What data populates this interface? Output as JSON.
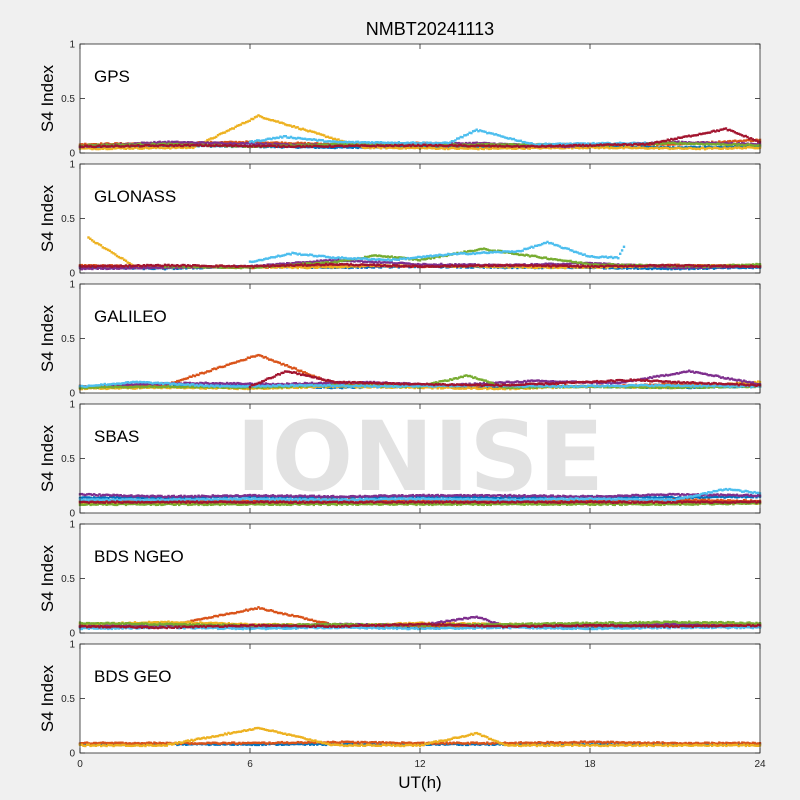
{
  "chart_data": {
    "type": "scatter",
    "title": "NMBT20241113",
    "xlabel": "UT(h)",
    "ylabel": "S4 Index",
    "xlim": [
      0,
      24
    ],
    "ylim": [
      0,
      1
    ],
    "xticks": [
      "0",
      "6",
      "12",
      "18",
      "24"
    ],
    "yticks": [
      "0",
      "0.5",
      "1"
    ],
    "grid": false,
    "watermark": "IONISE",
    "series_colors": [
      "#0072BD",
      "#D95319",
      "#EDB120",
      "#7E2F8E",
      "#77AC30",
      "#4DBEEE",
      "#A2142F"
    ],
    "panels": [
      {
        "name": "GPS",
        "series": [
          {
            "x": [
              0,
              3,
              6,
              9,
              12,
              15,
              18,
              21,
              24
            ],
            "y": [
              0.05,
              0.07,
              0.06,
              0.05,
              0.06,
              0.05,
              0.06,
              0.05,
              0.06
            ]
          },
          {
            "x": [
              0,
              3,
              6,
              9,
              12,
              15,
              18,
              21,
              24
            ],
            "y": [
              0.08,
              0.09,
              0.1,
              0.08,
              0.09,
              0.07,
              0.08,
              0.08,
              0.12
            ]
          },
          {
            "x": [
              0,
              4,
              6.3,
              10,
              14,
              18,
              22,
              24
            ],
            "y": [
              0.04,
              0.05,
              0.34,
              0.05,
              0.04,
              0.05,
              0.04,
              0.05
            ]
          },
          {
            "x": [
              0,
              3,
              7,
              10,
              14,
              17,
              21,
              24
            ],
            "y": [
              0.06,
              0.1,
              0.08,
              0.07,
              0.09,
              0.06,
              0.1,
              0.08
            ]
          },
          {
            "x": [
              0,
              3,
              6,
              9,
              12,
              15,
              18,
              21,
              24
            ],
            "y": [
              0.07,
              0.08,
              0.06,
              0.08,
              0.07,
              0.08,
              0.07,
              0.09,
              0.07
            ]
          },
          {
            "x": [
              6,
              7.2,
              9,
              13,
              14,
              16,
              20
            ],
            "y": [
              0.1,
              0.15,
              0.1,
              0.09,
              0.21,
              0.08,
              0.09
            ]
          },
          {
            "x": [
              0,
              4,
              8,
              12,
              16,
              20,
              22.8,
              24
            ],
            "y": [
              0.06,
              0.07,
              0.06,
              0.07,
              0.06,
              0.08,
              0.22,
              0.1
            ]
          }
        ]
      },
      {
        "name": "GLONASS",
        "series": [
          {
            "x": [
              0,
              3,
              6,
              9,
              12,
              15,
              18,
              21,
              24
            ],
            "y": [
              0.05,
              0.04,
              0.06,
              0.05,
              0.06,
              0.05,
              0.05,
              0.04,
              0.05
            ]
          },
          {
            "x": [
              0,
              3,
              6,
              9,
              12,
              15,
              18,
              21,
              24
            ],
            "y": [
              0.07,
              0.06,
              0.05,
              0.07,
              0.06,
              0.07,
              0.06,
              0.07,
              0.06
            ]
          },
          {
            "x": [
              0.3,
              2,
              5,
              8,
              11,
              14,
              17,
              20,
              24
            ],
            "y": [
              0.32,
              0.05,
              0.06,
              0.05,
              0.07,
              0.06,
              0.05,
              0.06,
              0.07
            ]
          },
          {
            "x": [
              0,
              3,
              6,
              9,
              12,
              15,
              18,
              21,
              24
            ],
            "y": [
              0.04,
              0.05,
              0.06,
              0.12,
              0.08,
              0.07,
              0.09,
              0.05,
              0.06
            ]
          },
          {
            "x": [
              3,
              6,
              9,
              10.5,
              12,
              14.2,
              18,
              22,
              24
            ],
            "y": [
              0.06,
              0.05,
              0.1,
              0.16,
              0.12,
              0.22,
              0.08,
              0.06,
              0.08
            ]
          },
          {
            "x": [
              6,
              7.5,
              9,
              11,
              13,
              15.5,
              16.5,
              18,
              19,
              19.2
            ],
            "y": [
              0.1,
              0.18,
              0.14,
              0.12,
              0.17,
              0.2,
              0.28,
              0.15,
              0.14,
              0.24
            ]
          },
          {
            "x": [
              0,
              3,
              6,
              9,
              12,
              15,
              18,
              21,
              24
            ],
            "y": [
              0.06,
              0.07,
              0.06,
              0.08,
              0.06,
              0.07,
              0.06,
              0.07,
              0.06
            ]
          }
        ]
      },
      {
        "name": "GALILEO",
        "series": [
          {
            "x": [
              0,
              3,
              6,
              9,
              12,
              15,
              18,
              21,
              24
            ],
            "y": [
              0.05,
              0.06,
              0.07,
              0.05,
              0.06,
              0.05,
              0.06,
              0.05,
              0.06
            ]
          },
          {
            "x": [
              0,
              3,
              6.3,
              9,
              12,
              15,
              18,
              21,
              24
            ],
            "y": [
              0.06,
              0.07,
              0.35,
              0.08,
              0.06,
              0.07,
              0.06,
              0.08,
              0.07
            ]
          },
          {
            "x": [
              0,
              3,
              6,
              9,
              12,
              15,
              18,
              21,
              24
            ],
            "y": [
              0.04,
              0.05,
              0.04,
              0.06,
              0.05,
              0.04,
              0.06,
              0.05,
              0.1
            ]
          },
          {
            "x": [
              1,
              4,
              7,
              10,
              13,
              16,
              19,
              21.5,
              24
            ],
            "y": [
              0.07,
              0.09,
              0.08,
              0.1,
              0.07,
              0.11,
              0.09,
              0.2,
              0.08
            ]
          },
          {
            "x": [
              0,
              3,
              6,
              9,
              12,
              13.7,
              15,
              18,
              21,
              24
            ],
            "y": [
              0.05,
              0.06,
              0.05,
              0.07,
              0.06,
              0.16,
              0.05,
              0.06,
              0.05,
              0.06
            ]
          },
          {
            "x": [
              0,
              2,
              5,
              8,
              11,
              14,
              17,
              20,
              24
            ],
            "y": [
              0.06,
              0.1,
              0.06,
              0.07,
              0.06,
              0.07,
              0.06,
              0.07,
              0.06
            ]
          },
          {
            "x": [
              6,
              7.3,
              9,
              12,
              15,
              18,
              19.5,
              21,
              24
            ],
            "y": [
              0.06,
              0.2,
              0.1,
              0.08,
              0.07,
              0.1,
              0.12,
              0.1,
              0.07
            ]
          }
        ]
      },
      {
        "name": "SBAS",
        "series": [
          {
            "x": [
              0,
              3,
              6,
              9,
              12,
              15,
              18,
              21,
              24
            ],
            "y": [
              0.14,
              0.14,
              0.15,
              0.14,
              0.15,
              0.14,
              0.15,
              0.14,
              0.15
            ]
          },
          {
            "x": [
              0,
              3,
              6,
              9,
              12,
              15,
              18,
              21,
              24
            ],
            "y": [
              0.11,
              0.11,
              0.11,
              0.12,
              0.11,
              0.11,
              0.11,
              0.12,
              0.11
            ]
          },
          {
            "x": [
              0,
              3,
              6,
              9,
              12,
              15,
              18,
              21,
              24
            ],
            "y": [
              0.09,
              0.09,
              0.09,
              0.09,
              0.09,
              0.09,
              0.09,
              0.09,
              0.09
            ]
          },
          {
            "x": [
              0,
              3,
              6,
              9,
              12,
              15,
              18,
              21,
              24
            ],
            "y": [
              0.17,
              0.15,
              0.16,
              0.15,
              0.16,
              0.16,
              0.15,
              0.17,
              0.16
            ]
          },
          {
            "x": [
              0,
              3,
              6,
              9,
              12,
              15,
              18,
              21,
              24
            ],
            "y": [
              0.08,
              0.08,
              0.08,
              0.08,
              0.08,
              0.08,
              0.08,
              0.08,
              0.09
            ]
          },
          {
            "x": [
              0,
              3,
              6,
              9,
              12,
              15,
              18,
              21,
              22.8,
              24
            ],
            "y": [
              0.12,
              0.12,
              0.13,
              0.12,
              0.13,
              0.12,
              0.13,
              0.12,
              0.22,
              0.18
            ]
          },
          {
            "x": [
              0,
              3,
              6,
              9,
              12,
              15,
              18,
              21,
              24
            ],
            "y": [
              0.1,
              0.1,
              0.1,
              0.1,
              0.1,
              0.1,
              0.1,
              0.1,
              0.1
            ]
          }
        ]
      },
      {
        "name": "BDS NGEO",
        "series": [
          {
            "x": [
              0,
              3,
              6,
              9,
              12,
              15,
              18,
              21,
              24
            ],
            "y": [
              0.05,
              0.06,
              0.05,
              0.06,
              0.05,
              0.06,
              0.05,
              0.07,
              0.08
            ]
          },
          {
            "x": [
              0,
              3,
              6.3,
              9,
              12,
              15,
              18,
              21,
              24
            ],
            "y": [
              0.07,
              0.06,
              0.23,
              0.07,
              0.06,
              0.07,
              0.06,
              0.07,
              0.06
            ]
          },
          {
            "x": [
              0,
              3,
              6,
              9,
              12,
              15,
              18,
              21,
              24
            ],
            "y": [
              0.08,
              0.1,
              0.08,
              0.07,
              0.09,
              0.08,
              0.07,
              0.09,
              0.08
            ]
          },
          {
            "x": [
              0,
              3,
              6,
              9,
              12,
              14,
              15,
              18,
              21,
              24
            ],
            "y": [
              0.06,
              0.07,
              0.06,
              0.08,
              0.07,
              0.15,
              0.06,
              0.07,
              0.08,
              0.06
            ]
          },
          {
            "x": [
              0,
              3,
              6,
              9,
              12,
              15,
              18,
              21,
              24
            ],
            "y": [
              0.09,
              0.08,
              0.07,
              0.08,
              0.07,
              0.08,
              0.09,
              0.1,
              0.09
            ]
          },
          {
            "x": [
              0,
              3,
              6,
              9,
              12,
              15,
              18,
              21,
              24
            ],
            "y": [
              0.04,
              0.05,
              0.04,
              0.05,
              0.04,
              0.05,
              0.04,
              0.05,
              0.05
            ]
          },
          {
            "x": [
              0,
              3,
              6,
              9,
              12,
              15,
              18,
              21,
              24
            ],
            "y": [
              0.06,
              0.05,
              0.07,
              0.06,
              0.08,
              0.06,
              0.07,
              0.06,
              0.07
            ]
          }
        ]
      },
      {
        "name": "BDS GEO",
        "series": [
          {
            "x": [
              0,
              3,
              6,
              9,
              12,
              15,
              18,
              21,
              24
            ],
            "y": [
              0.08,
              0.08,
              0.08,
              0.08,
              0.08,
              0.08,
              0.08,
              0.08,
              0.08
            ]
          },
          {
            "x": [
              0,
              3,
              6,
              9,
              12,
              15,
              18,
              21,
              24
            ],
            "y": [
              0.09,
              0.09,
              0.09,
              0.1,
              0.09,
              0.09,
              0.1,
              0.09,
              0.09
            ]
          },
          {
            "x": [
              0,
              3,
              6.3,
              9,
              12,
              14,
              15,
              18,
              21,
              24
            ],
            "y": [
              0.07,
              0.07,
              0.23,
              0.07,
              0.07,
              0.18,
              0.07,
              0.07,
              0.07,
              0.07
            ]
          }
        ]
      }
    ]
  }
}
